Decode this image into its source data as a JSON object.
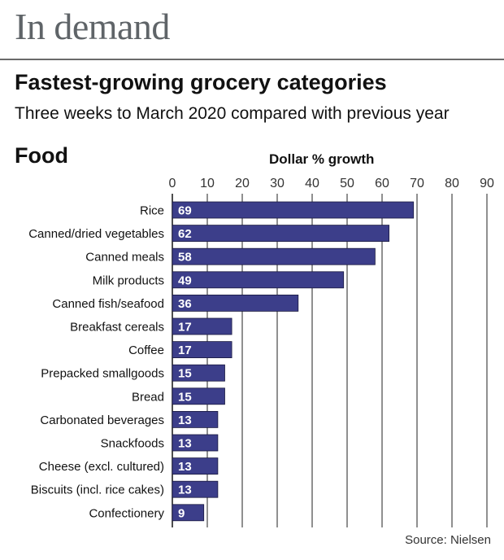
{
  "header": {
    "headline": "In demand",
    "title": "Fastest-growing grocery categories",
    "subtitle": "Three weeks to March 2020 compared with previous year",
    "section": "Food"
  },
  "source": "Source: Nielsen",
  "colors": {
    "bar": "#3c3e8a",
    "grid": "#222222",
    "bar_border": "#1a1a40"
  },
  "chart_data": {
    "type": "bar",
    "orientation": "horizontal",
    "title": "Fastest-growing grocery categories",
    "subtitle": "Three weeks to March 2020 compared with previous year",
    "xlabel": "Dollar % growth",
    "ylabel": "",
    "xlim": [
      0,
      90
    ],
    "xticks": [
      0,
      10,
      20,
      30,
      40,
      50,
      60,
      70,
      80,
      90
    ],
    "grid": true,
    "legend": "none",
    "categories": [
      "Rice",
      "Canned/dried vegetables",
      "Canned meals",
      "Milk products",
      "Canned fish/seafood",
      "Breakfast cereals",
      "Coffee",
      "Prepacked smallgoods",
      "Bread",
      "Carbonated beverages",
      "Snackfoods",
      "Cheese (excl. cultured)",
      "Biscuits (incl. rice cakes)",
      "Confectionery"
    ],
    "values": [
      69,
      62,
      58,
      49,
      36,
      17,
      17,
      15,
      15,
      13,
      13,
      13,
      13,
      9
    ]
  }
}
